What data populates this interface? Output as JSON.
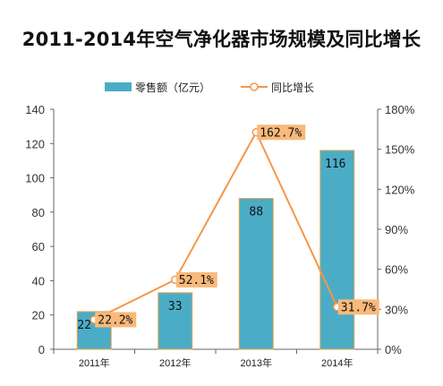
{
  "title": "2011-2014年空气净化器市场规模及同比增长",
  "chart_data": {
    "type": "bar",
    "title": "2011-2014年空气净化器市场规模及同比增长",
    "categories": [
      "2011年",
      "2012年",
      "2013年",
      "2014年"
    ],
    "series": [
      {
        "name": "零售额（亿元）",
        "type": "bar",
        "axis": "left",
        "values": [
          22,
          33,
          88,
          116
        ],
        "labels": [
          "22",
          "33",
          "88",
          "116"
        ]
      },
      {
        "name": "同比增长",
        "type": "line",
        "axis": "right",
        "values": [
          22.2,
          52.1,
          162.7,
          31.7
        ],
        "labels": [
          "22.2%",
          "52.1%",
          "162.7%",
          "31.7%"
        ]
      }
    ],
    "y_left": {
      "range": [
        0,
        140
      ],
      "ticks": [
        "0",
        "20",
        "40",
        "60",
        "80",
        "100",
        "120",
        "140"
      ]
    },
    "y_right": {
      "range": [
        0,
        180
      ],
      "ticks": [
        "0%",
        "30%",
        "60%",
        "90%",
        "120%",
        "150%",
        "180%"
      ]
    },
    "legend_position": "top",
    "grid": false,
    "colors": {
      "bar": "#4bacc6",
      "bar_border": "#e8a64a",
      "line": "#f79646",
      "label_bg": "#f9b97a"
    }
  }
}
